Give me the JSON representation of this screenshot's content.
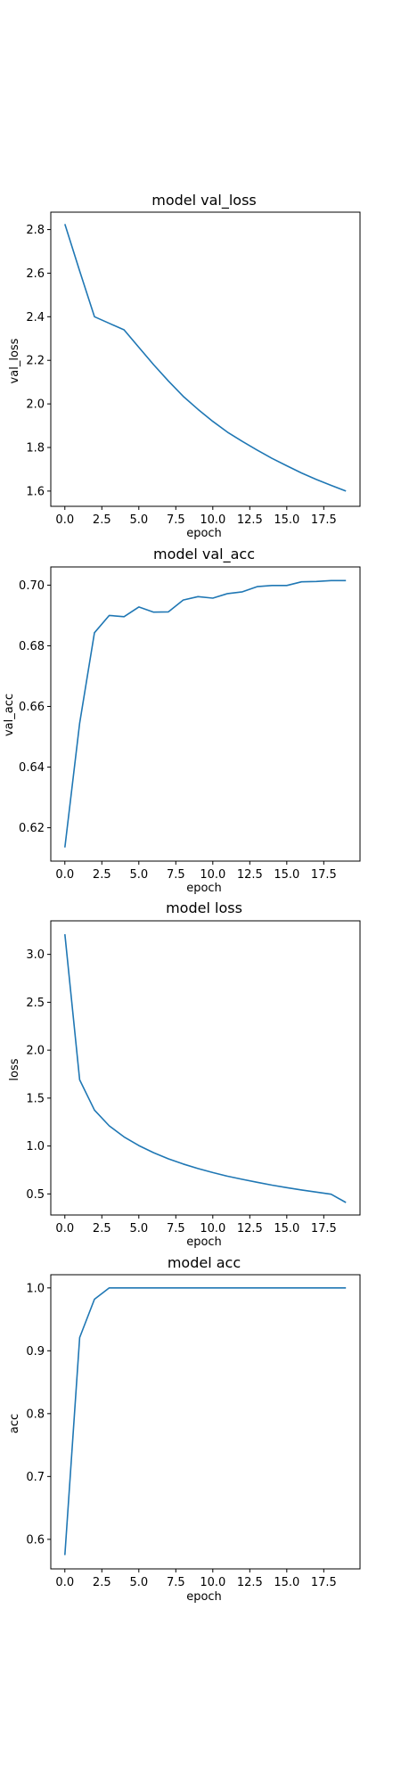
{
  "colors": {
    "line": "#1f77b4",
    "axes": "#000000",
    "background": "#ffffff"
  },
  "chart_data": [
    {
      "type": "line",
      "title": "model val_loss",
      "xlabel": "epoch",
      "ylabel": "val_loss",
      "grid": false,
      "legend": "none",
      "xlim": [
        -0.95,
        19.95
      ],
      "ylim": [
        1.53,
        2.88
      ],
      "xticks": [
        0.0,
        2.5,
        5.0,
        7.5,
        10.0,
        12.5,
        15.0,
        17.5
      ],
      "xtick_labels": [
        "0.0",
        "2.5",
        "5.0",
        "7.5",
        "10.0",
        "12.5",
        "15.0",
        "17.5"
      ],
      "yticks": [
        1.6,
        1.8,
        2.0,
        2.2,
        2.4,
        2.6,
        2.8
      ],
      "ytick_labels": [
        "1.6",
        "1.8",
        "2.0",
        "2.2",
        "2.4",
        "2.6",
        "2.8"
      ],
      "series": [
        {
          "x": [
            0,
            1,
            2,
            3,
            4,
            5,
            6,
            7,
            8,
            9,
            10,
            11,
            12,
            13,
            14,
            15,
            16,
            17,
            18,
            19
          ],
          "values": [
            2.825,
            2.61,
            2.4,
            2.37,
            2.34,
            2.26,
            2.18,
            2.105,
            2.035,
            1.975,
            1.92,
            1.87,
            1.828,
            1.788,
            1.75,
            1.716,
            1.683,
            1.653,
            1.626,
            1.6
          ]
        }
      ]
    },
    {
      "type": "line",
      "title": "model val_acc",
      "xlabel": "epoch",
      "ylabel": "val_acc",
      "grid": false,
      "legend": "none",
      "xlim": [
        -0.95,
        19.95
      ],
      "ylim": [
        0.609,
        0.706
      ],
      "xticks": [
        0.0,
        2.5,
        5.0,
        7.5,
        10.0,
        12.5,
        15.0,
        17.5
      ],
      "xtick_labels": [
        "0.0",
        "2.5",
        "5.0",
        "7.5",
        "10.0",
        "12.5",
        "15.0",
        "17.5"
      ],
      "yticks": [
        0.62,
        0.64,
        0.66,
        0.68,
        0.7
      ],
      "ytick_labels": [
        "0.62",
        "0.64",
        "0.66",
        "0.68",
        "0.70"
      ],
      "series": [
        {
          "x": [
            0,
            1,
            2,
            3,
            4,
            5,
            6,
            7,
            8,
            9,
            10,
            11,
            12,
            13,
            14,
            15,
            16,
            17,
            18,
            19
          ],
          "values": [
            0.6135,
            0.6545,
            0.6843,
            0.69,
            0.6896,
            0.6928,
            0.6911,
            0.6912,
            0.6951,
            0.6962,
            0.6957,
            0.6972,
            0.6978,
            0.6995,
            0.6999,
            0.6999,
            0.7011,
            0.7012,
            0.7015,
            0.7015
          ]
        }
      ]
    },
    {
      "type": "line",
      "title": "model loss",
      "xlabel": "epoch",
      "ylabel": "loss",
      "grid": false,
      "legend": "none",
      "xlim": [
        -0.95,
        19.95
      ],
      "ylim": [
        0.28,
        3.35
      ],
      "xticks": [
        0.0,
        2.5,
        5.0,
        7.5,
        10.0,
        12.5,
        15.0,
        17.5
      ],
      "xtick_labels": [
        "0.0",
        "2.5",
        "5.0",
        "7.5",
        "10.0",
        "12.5",
        "15.0",
        "17.5"
      ],
      "yticks": [
        0.5,
        1.0,
        1.5,
        2.0,
        2.5,
        3.0
      ],
      "ytick_labels": [
        "0.5",
        "1.0",
        "1.5",
        "2.0",
        "2.5",
        "3.0"
      ],
      "series": [
        {
          "x": [
            0,
            1,
            2,
            3,
            4,
            5,
            6,
            7,
            8,
            9,
            10,
            11,
            12,
            13,
            14,
            15,
            16,
            17,
            18,
            19
          ],
          "values": [
            3.21,
            1.69,
            1.375,
            1.21,
            1.095,
            1.005,
            0.93,
            0.866,
            0.812,
            0.765,
            0.723,
            0.685,
            0.652,
            0.621,
            0.592,
            0.566,
            0.541,
            0.519,
            0.497,
            0.41
          ]
        }
      ]
    },
    {
      "type": "line",
      "title": "model acc",
      "xlabel": "epoch",
      "ylabel": "acc",
      "grid": false,
      "legend": "none",
      "xlim": [
        -0.95,
        19.95
      ],
      "ylim": [
        0.553,
        1.021
      ],
      "xticks": [
        0.0,
        2.5,
        5.0,
        7.5,
        10.0,
        12.5,
        15.0,
        17.5
      ],
      "xtick_labels": [
        "0.0",
        "2.5",
        "5.0",
        "7.5",
        "10.0",
        "12.5",
        "15.0",
        "17.5"
      ],
      "yticks": [
        0.6,
        0.7,
        0.8,
        0.9,
        1.0
      ],
      "ytick_labels": [
        "0.6",
        "0.7",
        "0.8",
        "0.9",
        "1.0"
      ],
      "series": [
        {
          "x": [
            0,
            1,
            2,
            3,
            4,
            5,
            6,
            7,
            8,
            9,
            10,
            11,
            12,
            13,
            14,
            15,
            16,
            17,
            18,
            19
          ],
          "values": [
            0.575,
            0.921,
            0.982,
            1.0,
            1.0,
            1.0,
            1.0,
            1.0,
            1.0,
            1.0,
            1.0,
            1.0,
            1.0,
            1.0,
            1.0,
            1.0,
            1.0,
            1.0,
            1.0,
            1.0
          ]
        }
      ]
    }
  ]
}
